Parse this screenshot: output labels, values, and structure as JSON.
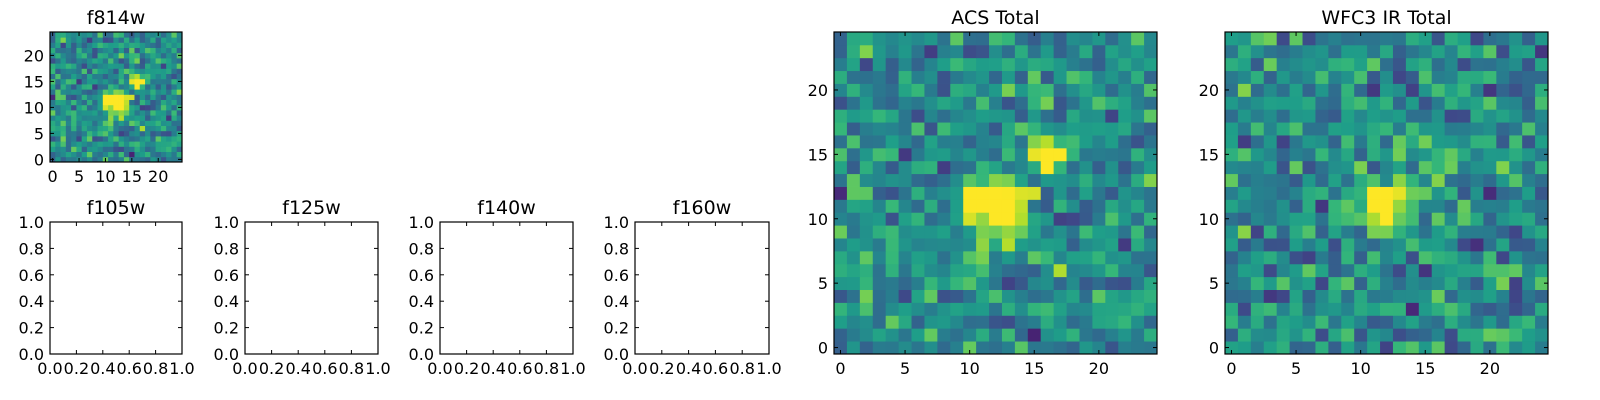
{
  "chart_data": [
    {
      "type": "heatmap",
      "title": "f814w",
      "xticks": [
        "0",
        "5",
        "10",
        "15",
        "20"
      ],
      "yticks": [
        "0",
        "5",
        "10",
        "15",
        "20"
      ],
      "xlim": [
        -0.5,
        24.5
      ],
      "ylim": [
        -0.5,
        24.5
      ],
      "grid": false,
      "colormap": "viridis",
      "size": [
        25,
        25
      ],
      "sources": [
        {
          "x": 12,
          "y": 11,
          "amp": 0.9,
          "sigma": 1.5
        },
        {
          "x": 16,
          "y": 15,
          "amp": 0.6,
          "sigma": 1.1
        }
      ],
      "noise_seed": 11
    },
    {
      "type": "empty",
      "title": "f105w",
      "xticks": [
        "0.0",
        "0.2",
        "0.4",
        "0.6",
        "0.8",
        "1.0"
      ],
      "yticks": [
        "0.0",
        "0.2",
        "0.4",
        "0.6",
        "0.8",
        "1.0"
      ],
      "xlim": [
        0,
        1
      ],
      "ylim": [
        0,
        1
      ]
    },
    {
      "type": "empty",
      "title": "f125w",
      "xticks": [
        "0.0",
        "0.2",
        "0.4",
        "0.6",
        "0.8",
        "1.0"
      ],
      "yticks": [
        "0.0",
        "0.2",
        "0.4",
        "0.6",
        "0.8",
        "1.0"
      ],
      "xlim": [
        0,
        1
      ],
      "ylim": [
        0,
        1
      ]
    },
    {
      "type": "empty",
      "title": "f140w",
      "xticks": [
        "0.0",
        "0.2",
        "0.4",
        "0.6",
        "0.8",
        "1.0"
      ],
      "yticks": [
        "0.0",
        "0.2",
        "0.4",
        "0.6",
        "0.8",
        "1.0"
      ],
      "xlim": [
        0,
        1
      ],
      "ylim": [
        0,
        1
      ]
    },
    {
      "type": "empty",
      "title": "f160w",
      "xticks": [
        "0.0",
        "0.2",
        "0.4",
        "0.6",
        "0.8",
        "1.0"
      ],
      "yticks": [
        "0.0",
        "0.2",
        "0.4",
        "0.6",
        "0.8",
        "1.0"
      ],
      "xlim": [
        0,
        1
      ],
      "ylim": [
        0,
        1
      ]
    },
    {
      "type": "heatmap",
      "title": "ACS Total",
      "xticks": [
        "0",
        "5",
        "10",
        "15",
        "20"
      ],
      "yticks": [
        "0",
        "5",
        "10",
        "15",
        "20"
      ],
      "xlim": [
        -0.5,
        24.5
      ],
      "ylim": [
        -0.5,
        24.5
      ],
      "grid": false,
      "colormap": "viridis",
      "size": [
        25,
        25
      ],
      "sources": [
        {
          "x": 12,
          "y": 11,
          "amp": 0.9,
          "sigma": 1.5
        },
        {
          "x": 16,
          "y": 15,
          "amp": 0.6,
          "sigma": 1.1
        }
      ],
      "noise_seed": 11
    },
    {
      "type": "heatmap",
      "title": "WFC3 IR Total",
      "xticks": [
        "0",
        "5",
        "10",
        "15",
        "20"
      ],
      "yticks": [
        "0",
        "5",
        "10",
        "15",
        "20"
      ],
      "xlim": [
        -0.5,
        24.5
      ],
      "ylim": [
        -0.5,
        24.5
      ],
      "grid": false,
      "colormap": "viridis",
      "size": [
        25,
        25
      ],
      "sources": [
        {
          "x": 12,
          "y": 11,
          "amp": 0.75,
          "sigma": 1.4
        },
        {
          "x": 16,
          "y": 14,
          "amp": 0.45,
          "sigma": 1.1
        }
      ],
      "noise_seed": 29
    }
  ]
}
